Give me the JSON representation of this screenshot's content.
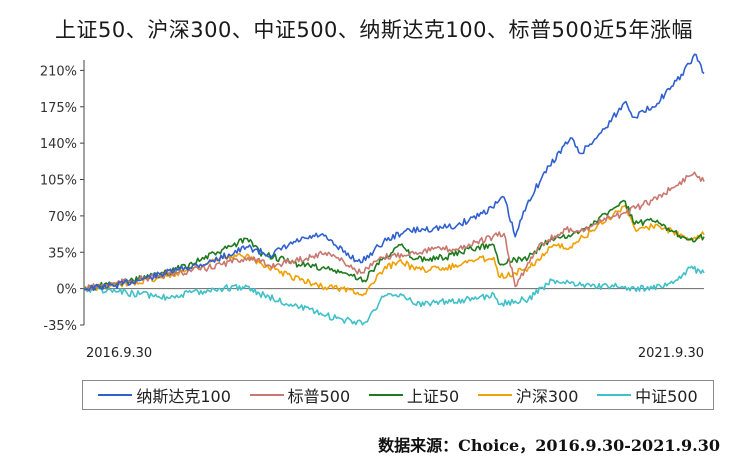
{
  "chart_data": {
    "type": "line",
    "title": "上证50、沪深300、中证500、纳斯达克100、标普500近5年涨幅",
    "xlabel": "",
    "ylabel": "",
    "x_tick_labels": [
      "2016.9.30",
      "2021.9.30"
    ],
    "x_range": [
      "2016-09-30",
      "2021-09-30"
    ],
    "ylim": [
      -35,
      220
    ],
    "y_ticks": [
      -35,
      0,
      35,
      70,
      105,
      140,
      175,
      210
    ],
    "y_tick_labels": [
      "-35%",
      "0%",
      "35%",
      "70%",
      "105%",
      "140%",
      "175%",
      "210%"
    ],
    "grid": false,
    "legend_position": "bottom",
    "series": [
      {
        "name": "纳斯达克100",
        "color": "#3060d0",
        "x": [
          "2016-09-30",
          "2017-01-01",
          "2017-04-01",
          "2017-07-01",
          "2017-10-01",
          "2018-01-26",
          "2018-04-01",
          "2018-06-15",
          "2018-08-29",
          "2018-10-15",
          "2018-12-24",
          "2019-03-01",
          "2019-05-01",
          "2019-07-26",
          "2019-10-01",
          "2020-01-15",
          "2020-02-19",
          "2020-03-23",
          "2020-05-01",
          "2020-07-01",
          "2020-09-02",
          "2020-10-01",
          "2020-12-01",
          "2021-02-12",
          "2021-03-08",
          "2021-05-01",
          "2021-07-01",
          "2021-09-07",
          "2021-09-30"
        ],
        "values": [
          0,
          3,
          10,
          18,
          25,
          40,
          32,
          45,
          52,
          40,
          25,
          45,
          55,
          58,
          60,
          78,
          88,
          50,
          85,
          118,
          145,
          130,
          150,
          180,
          165,
          175,
          195,
          225,
          207
        ]
      },
      {
        "name": "标普500",
        "color": "#c87870",
        "x": [
          "2016-09-30",
          "2017-01-01",
          "2017-04-01",
          "2017-07-01",
          "2017-10-01",
          "2018-01-26",
          "2018-04-01",
          "2018-06-15",
          "2018-09-20",
          "2018-12-24",
          "2019-03-01",
          "2019-07-26",
          "2019-10-01",
          "2020-02-19",
          "2020-03-23",
          "2020-06-01",
          "2020-09-02",
          "2020-10-01",
          "2020-12-01",
          "2021-02-12",
          "2021-05-01",
          "2021-07-01",
          "2021-09-02",
          "2021-09-30"
        ],
        "values": [
          0,
          5,
          10,
          15,
          20,
          30,
          22,
          27,
          35,
          15,
          30,
          38,
          38,
          53,
          2,
          42,
          58,
          55,
          65,
          73,
          85,
          97,
          112,
          103
        ]
      },
      {
        "name": "上证50",
        "color": "#1e7a1e",
        "x": [
          "2016-09-30",
          "2017-01-01",
          "2017-06-01",
          "2017-11-01",
          "2018-01-24",
          "2018-03-01",
          "2018-06-01",
          "2018-09-01",
          "2018-11-01",
          "2019-01-03",
          "2019-03-01",
          "2019-04-20",
          "2019-06-01",
          "2019-09-01",
          "2019-12-01",
          "2020-01-20",
          "2020-02-03",
          "2020-03-23",
          "2020-05-01",
          "2020-07-09",
          "2020-09-01",
          "2020-11-01",
          "2021-02-10",
          "2021-03-10",
          "2021-05-01",
          "2021-07-01",
          "2021-08-20",
          "2021-09-30"
        ],
        "values": [
          0,
          5,
          15,
          35,
          48,
          35,
          25,
          20,
          15,
          8,
          30,
          42,
          28,
          30,
          40,
          42,
          25,
          28,
          30,
          48,
          50,
          62,
          84,
          62,
          65,
          55,
          47,
          50
        ]
      },
      {
        "name": "沪深300",
        "color": "#f0a000",
        "x": [
          "2016-09-30",
          "2017-01-01",
          "2017-06-01",
          "2017-11-01",
          "2018-01-24",
          "2018-03-01",
          "2018-06-01",
          "2018-09-01",
          "2018-11-01",
          "2019-01-03",
          "2019-03-01",
          "2019-04-20",
          "2019-06-01",
          "2019-09-01",
          "2019-12-01",
          "2020-01-20",
          "2020-02-03",
          "2020-03-23",
          "2020-05-01",
          "2020-07-09",
          "2020-09-01",
          "2020-11-01",
          "2021-02-10",
          "2021-03-10",
          "2021-05-01",
          "2021-07-01",
          "2021-08-20",
          "2021-09-30"
        ],
        "values": [
          0,
          3,
          12,
          28,
          33,
          25,
          12,
          2,
          0,
          -5,
          18,
          28,
          18,
          20,
          28,
          30,
          12,
          15,
          20,
          40,
          40,
          55,
          80,
          58,
          60,
          55,
          48,
          52
        ]
      },
      {
        "name": "中证500",
        "color": "#40c0c8",
        "x": [
          "2016-09-30",
          "2017-01-01",
          "2017-06-01",
          "2017-11-01",
          "2018-01-24",
          "2018-03-01",
          "2018-06-01",
          "2018-09-01",
          "2018-11-01",
          "2019-01-03",
          "2019-03-01",
          "2019-04-20",
          "2019-06-01",
          "2019-09-01",
          "2019-12-01",
          "2020-01-20",
          "2020-02-03",
          "2020-03-23",
          "2020-05-01",
          "2020-07-09",
          "2020-09-01",
          "2020-11-01",
          "2021-02-10",
          "2021-03-10",
          "2021-05-01",
          "2021-07-01",
          "2021-08-20",
          "2021-09-30"
        ],
        "values": [
          0,
          -3,
          -8,
          0,
          2,
          -5,
          -15,
          -25,
          -30,
          -33,
          -8,
          -5,
          -15,
          -12,
          -10,
          -5,
          -15,
          -12,
          -10,
          8,
          5,
          2,
          2,
          0,
          0,
          5,
          20,
          15
        ]
      }
    ]
  },
  "source_text": "数据来源：Choice，2016.9.30-2021.9.30"
}
